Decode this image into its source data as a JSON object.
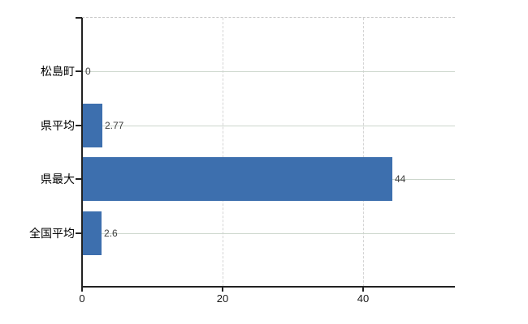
{
  "chart_data": {
    "type": "bar",
    "orientation": "horizontal",
    "title": "",
    "xlabel": "",
    "ylabel": "",
    "categories": [
      "松島町",
      "県平均",
      "県最大",
      "全国平均"
    ],
    "values": [
      0,
      2.77,
      44,
      2.6
    ],
    "value_labels": [
      "0",
      "2.77",
      "44",
      "2.6"
    ],
    "xlim": [
      0,
      53
    ],
    "xticks": [
      0,
      20,
      40
    ],
    "xtick_labels": [
      "0",
      "20",
      "40"
    ],
    "grid": {
      "horizontal_solid": true,
      "vertical_dashed": true,
      "top_border_dashed": true
    },
    "legend": null,
    "colors": {
      "bar": "#3d6fae",
      "axis": "#222222",
      "horizontal_gridline": "#ccd6cc",
      "vertical_gridline": "#d4d4d4",
      "top_border": "#c9c9c9",
      "value_label_text": "#3f3f3f",
      "category_label_text": "#000000",
      "tick_label_text": "#1a1a1a",
      "background": "#ffffff"
    }
  }
}
